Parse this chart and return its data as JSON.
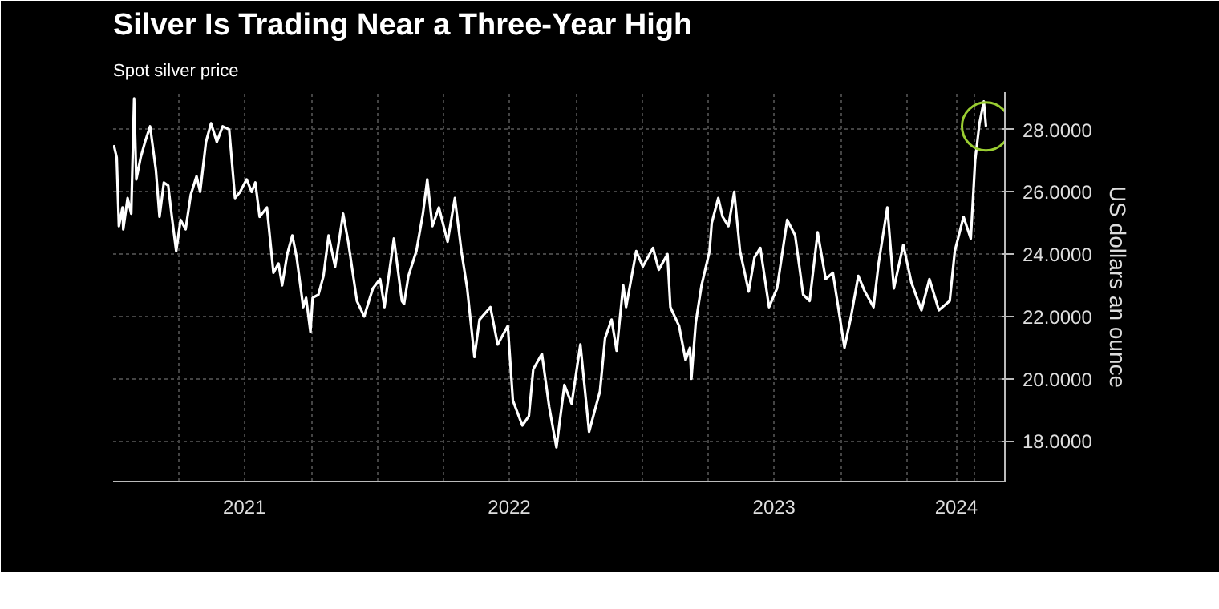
{
  "chart_data": {
    "type": "line",
    "title": "Silver Is Trading Near a Three-Year High",
    "ylabel": "US dollars an ounce",
    "legend": "top left",
    "grid": true,
    "line_style": "solid",
    "marker": "none",
    "x": [
      "2021-01-02",
      "2021-01-06",
      "2021-01-09",
      "2021-01-14",
      "2021-01-15",
      "2021-01-21",
      "2021-01-26",
      "2021-01-30",
      "2021-02-02",
      "2021-02-08",
      "2021-02-14",
      "2021-02-21",
      "2021-03-01",
      "2021-03-06",
      "2021-03-12",
      "2021-03-18",
      "2021-03-23",
      "2021-03-29",
      "2021-04-04",
      "2021-04-11",
      "2021-04-18",
      "2021-04-26",
      "2021-05-01",
      "2021-05-09",
      "2021-05-16",
      "2021-05-24",
      "2021-06-01",
      "2021-06-10",
      "2021-06-18",
      "2021-06-25",
      "2021-07-04",
      "2021-07-11",
      "2021-07-16",
      "2021-07-22",
      "2021-08-01",
      "2021-08-10",
      "2021-08-17",
      "2021-08-22",
      "2021-08-29",
      "2021-09-05",
      "2021-09-11",
      "2021-09-20",
      "2021-09-24",
      "2021-09-30",
      "2021-10-03",
      "2021-10-11",
      "2021-10-18",
      "2021-10-25",
      "2021-11-03",
      "2021-11-14",
      "2021-11-21",
      "2021-12-03",
      "2021-12-13",
      "2021-12-25",
      "2022-01-04",
      "2022-01-10",
      "2022-01-23",
      "2022-02-03",
      "2022-02-06",
      "2022-02-12",
      "2022-02-23",
      "2022-03-04",
      "2022-03-10",
      "2022-03-17",
      "2022-03-26",
      "2022-04-07",
      "2022-04-17",
      "2022-04-26",
      "2022-05-04",
      "2022-05-14",
      "2022-05-21",
      "2022-06-05",
      "2022-06-15",
      "2022-06-29",
      "2022-07-06",
      "2022-07-19",
      "2022-07-28",
      "2022-08-03",
      "2022-08-15",
      "2022-08-25",
      "2022-09-04",
      "2022-09-15",
      "2022-09-25",
      "2022-10-07",
      "2022-10-19",
      "2022-11-03",
      "2022-11-10",
      "2022-11-19",
      "2022-11-26",
      "2022-12-05",
      "2022-12-09",
      "2022-12-23",
      "2023-01-01",
      "2023-01-15",
      "2023-01-23",
      "2023-02-04",
      "2023-02-08",
      "2023-02-20",
      "2023-03-01",
      "2023-03-07",
      "2023-03-09",
      "2023-03-15",
      "2023-03-23",
      "2023-04-03",
      "2023-04-06",
      "2023-04-15",
      "2023-04-21",
      "2023-04-29",
      "2023-05-07",
      "2023-05-15",
      "2023-05-27",
      "2023-06-04",
      "2023-06-12",
      "2023-06-24",
      "2023-07-05",
      "2023-07-19",
      "2023-07-30",
      "2023-08-10",
      "2023-08-19",
      "2023-08-30",
      "2023-09-10",
      "2023-09-20",
      "2023-10-06",
      "2023-10-15",
      "2023-10-25",
      "2023-11-03",
      "2023-11-15",
      "2023-11-22",
      "2023-12-04",
      "2023-12-13",
      "2023-12-26",
      "2024-01-06",
      "2024-01-20",
      "2024-01-31",
      "2024-02-13",
      "2024-02-28",
      "2024-03-06",
      "2024-03-18",
      "2024-03-28",
      "2024-04-03",
      "2024-04-09",
      "2024-04-15",
      "2024-04-18"
    ],
    "series": [
      {
        "name": "Spot silver price",
        "color": "#ffffff",
        "values": [
          27.5,
          27.1,
          24.9,
          25.5,
          24.8,
          25.8,
          25.3,
          29.0,
          26.4,
          27.1,
          27.6,
          28.1,
          26.7,
          25.2,
          26.3,
          26.2,
          25.2,
          24.1,
          25.1,
          24.8,
          25.9,
          26.5,
          26.0,
          27.6,
          28.2,
          27.6,
          28.1,
          28.0,
          25.8,
          26.0,
          26.4,
          26.0,
          26.3,
          25.2,
          25.5,
          23.4,
          23.7,
          23.0,
          24.0,
          24.6,
          23.9,
          22.3,
          22.6,
          21.5,
          22.6,
          22.7,
          23.3,
          24.6,
          23.6,
          25.3,
          24.4,
          22.5,
          22.0,
          22.9,
          23.2,
          22.3,
          24.5,
          22.5,
          22.4,
          23.3,
          24.1,
          25.3,
          26.4,
          24.9,
          25.5,
          24.4,
          25.8,
          24.1,
          22.9,
          20.7,
          21.9,
          22.3,
          21.1,
          21.7,
          19.3,
          18.5,
          18.8,
          20.3,
          20.8,
          19.1,
          17.8,
          19.8,
          19.2,
          21.1,
          18.3,
          19.6,
          21.3,
          21.9,
          20.9,
          23.0,
          22.3,
          24.1,
          23.6,
          24.2,
          23.5,
          24.0,
          22.3,
          21.7,
          20.6,
          21.0,
          20.0,
          21.8,
          23.0,
          24.1,
          25.0,
          25.8,
          25.2,
          24.9,
          26.0,
          24.1,
          22.8,
          23.9,
          24.2,
          22.3,
          22.9,
          25.1,
          24.6,
          22.7,
          22.5,
          24.7,
          23.2,
          23.4,
          21.0,
          22.0,
          23.3,
          22.8,
          22.3,
          23.7,
          25.5,
          22.9,
          24.3,
          23.1,
          22.2,
          23.2,
          22.2,
          22.5,
          24.1,
          25.2,
          24.5,
          27.0,
          28.2,
          28.9,
          28.1
        ]
      }
    ],
    "xlim": [
      "2021-01-01",
      "2024-05-14"
    ],
    "xticks": [
      {
        "value": "2021-04-01",
        "label": null
      },
      {
        "value": "2021-07-01",
        "label": "2021"
      },
      {
        "value": "2021-10-01",
        "label": null
      },
      {
        "value": "2022-01-01",
        "label": null
      },
      {
        "value": "2022-04-01",
        "label": null
      },
      {
        "value": "2022-07-01",
        "label": "2022"
      },
      {
        "value": "2022-10-01",
        "label": null
      },
      {
        "value": "2023-01-01",
        "label": null
      },
      {
        "value": "2023-04-01",
        "label": null
      },
      {
        "value": "2023-07-01",
        "label": "2023"
      },
      {
        "value": "2023-10-01",
        "label": null
      },
      {
        "value": "2024-01-01",
        "label": null
      },
      {
        "value": "2024-03-08",
        "label": "2024"
      },
      {
        "value": "2024-04-01",
        "label": null
      }
    ],
    "ylim": [
      16.7,
      29.2
    ],
    "yticks": [
      {
        "value": 18,
        "label": "18.0000"
      },
      {
        "value": 20,
        "label": "20.0000"
      },
      {
        "value": 22,
        "label": "22.0000"
      },
      {
        "value": 24,
        "label": "24.0000"
      },
      {
        "value": 26,
        "label": "26.0000"
      },
      {
        "value": 28,
        "label": "28.0000"
      }
    ]
  }
}
